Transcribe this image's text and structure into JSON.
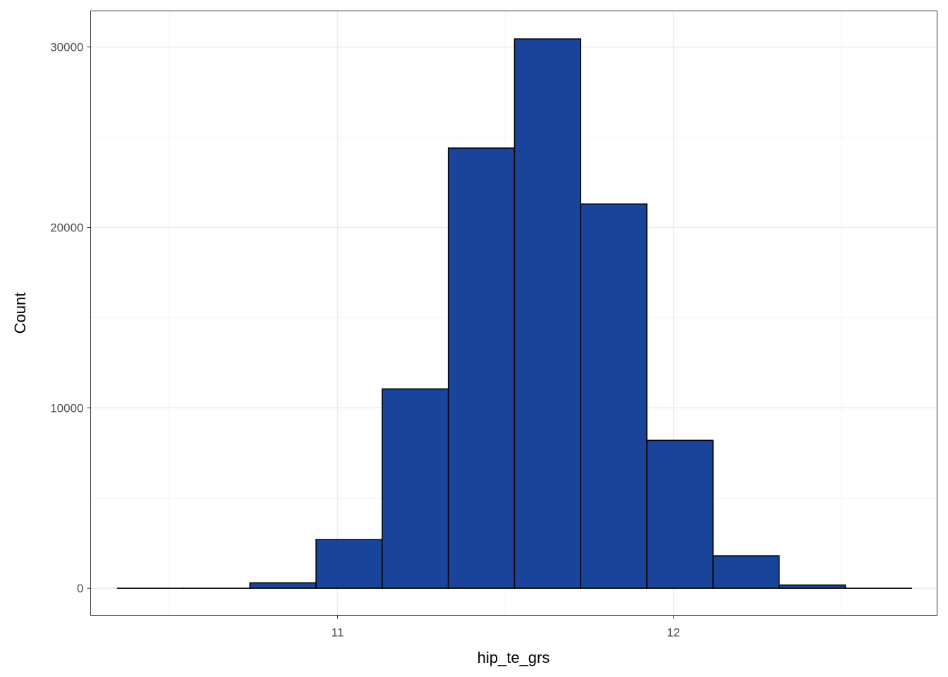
{
  "chart_data": {
    "type": "bar",
    "title": "",
    "xlabel": "hip_te_grs",
    "ylabel": "Count",
    "xlim": [
      10.265,
      12.785
    ],
    "ylim": [
      -1500,
      32000
    ],
    "grid": true,
    "x_ticks": [
      11,
      12
    ],
    "x_minor_ticks": [
      10.5,
      11.5,
      12.5
    ],
    "y_ticks": [
      0,
      10000,
      20000,
      30000
    ],
    "y_minor_ticks": [
      5000,
      15000,
      25000
    ],
    "bin_width": 0.197,
    "bins": [
      {
        "x0": 10.345,
        "x1": 10.542,
        "count": 0
      },
      {
        "x0": 10.542,
        "x1": 10.739,
        "count": 0
      },
      {
        "x0": 10.739,
        "x1": 10.936,
        "count": 300
      },
      {
        "x0": 10.936,
        "x1": 11.133,
        "count": 2700
      },
      {
        "x0": 11.133,
        "x1": 11.33,
        "count": 11050
      },
      {
        "x0": 11.33,
        "x1": 11.527,
        "count": 24400
      },
      {
        "x0": 11.527,
        "x1": 11.724,
        "count": 30450
      },
      {
        "x0": 11.724,
        "x1": 11.921,
        "count": 21300
      },
      {
        "x0": 11.921,
        "x1": 12.118,
        "count": 8200
      },
      {
        "x0": 12.118,
        "x1": 12.315,
        "count": 1800
      },
      {
        "x0": 12.315,
        "x1": 12.512,
        "count": 180
      },
      {
        "x0": 12.512,
        "x1": 12.709,
        "count": 0
      }
    ],
    "fill_color": "#1a4499",
    "outline_color": "#000000"
  }
}
